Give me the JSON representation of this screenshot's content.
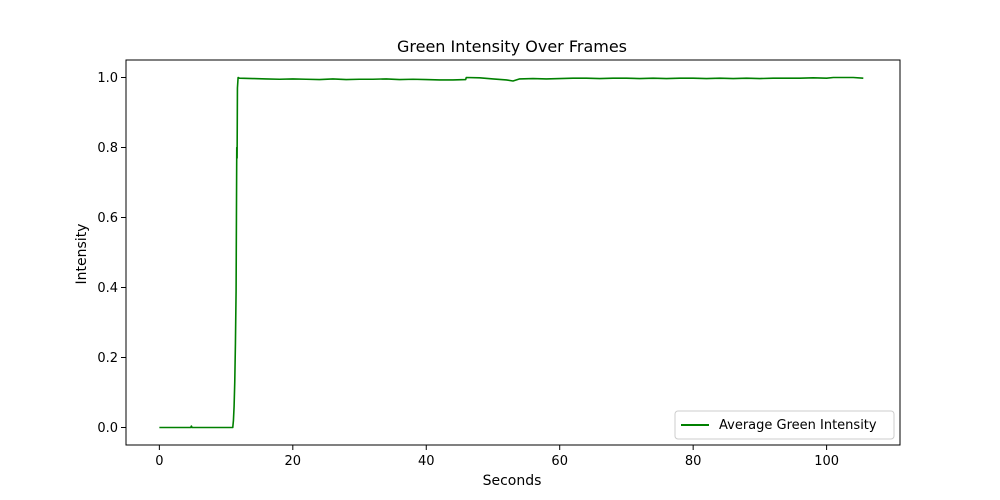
{
  "chart_data": {
    "type": "line",
    "title": "Green Intensity Over Frames",
    "xlabel": "Seconds",
    "ylabel": "Intensity",
    "xlim": [
      -5,
      111
    ],
    "ylim": [
      -0.05,
      1.05
    ],
    "xticks": [
      0,
      20,
      40,
      60,
      80,
      100
    ],
    "yticks": [
      0.0,
      0.2,
      0.4,
      0.6,
      0.8,
      1.0
    ],
    "xtick_labels": [
      "0",
      "20",
      "40",
      "60",
      "80",
      "100"
    ],
    "ytick_labels": [
      "0.0",
      "0.2",
      "0.4",
      "0.6",
      "0.8",
      "1.0"
    ],
    "grid": false,
    "legend_position": "lower-right",
    "colors": {
      "series": "#008000"
    },
    "series": [
      {
        "name": "Average Green Intensity",
        "x": [
          0,
          4.7,
          4.8,
          4.9,
          11.0,
          11.1,
          11.2,
          11.3,
          11.4,
          11.5,
          11.55,
          11.6,
          11.65,
          11.7,
          11.8,
          12.0,
          14,
          16,
          18,
          20,
          22,
          24,
          26,
          28,
          30,
          32,
          34,
          36,
          38,
          40,
          42,
          44,
          45.9,
          46.0,
          48,
          50,
          52,
          53,
          54,
          56,
          58,
          60,
          62,
          64,
          66,
          68,
          70,
          72,
          74,
          76,
          78,
          80,
          82,
          84,
          86,
          88,
          90,
          92,
          94,
          96,
          98,
          100,
          101,
          102,
          104,
          105.5
        ],
        "y": [
          0.0,
          0.0,
          0.004,
          0.0,
          0.0,
          0.02,
          0.06,
          0.13,
          0.24,
          0.39,
          0.6,
          0.8,
          0.77,
          0.97,
          1.0,
          0.998,
          0.997,
          0.996,
          0.995,
          0.996,
          0.995,
          0.994,
          0.996,
          0.994,
          0.995,
          0.995,
          0.996,
          0.994,
          0.995,
          0.994,
          0.993,
          0.993,
          0.994,
          1.0,
          0.999,
          0.996,
          0.993,
          0.99,
          0.996,
          0.997,
          0.996,
          0.997,
          0.998,
          0.998,
          0.997,
          0.998,
          0.998,
          0.997,
          0.998,
          0.997,
          0.998,
          0.998,
          0.997,
          0.998,
          0.997,
          0.998,
          0.997,
          0.998,
          0.998,
          0.998,
          0.999,
          0.998,
          1.0,
          1.0,
          1.0,
          0.998
        ]
      }
    ]
  }
}
